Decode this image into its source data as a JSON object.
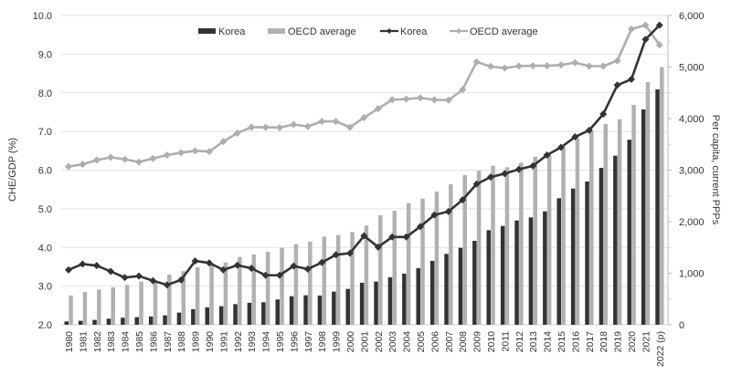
{
  "chart_data": {
    "type": "bar+line",
    "title": "",
    "categories": [
      "1980",
      "1981",
      "1982",
      "1983",
      "1984",
      "1985",
      "1986",
      "1987",
      "1988",
      "1989",
      "1990",
      "1991",
      "1992",
      "1993",
      "1994",
      "1995",
      "1996",
      "1997",
      "1998",
      "1999",
      "2000",
      "2001",
      "2002",
      "2003",
      "2004",
      "2005",
      "2006",
      "2007",
      "2008",
      "2009",
      "2010",
      "2011",
      "2012",
      "2013",
      "2014",
      "2015",
      "2016",
      "2017",
      "2018",
      "2019",
      "2020",
      "2021",
      "2022 (p)"
    ],
    "left_axis": {
      "label": "CHE/GDP (%)",
      "range": [
        2.0,
        10.0
      ],
      "ticks": [
        "2.0",
        "3.0",
        "4.0",
        "5.0",
        "6.0",
        "7.0",
        "8.0",
        "9.0",
        "10.0"
      ],
      "tick_values": [
        2,
        3,
        4,
        5,
        6,
        7,
        8,
        9,
        10
      ]
    },
    "right_axis": {
      "label": "Per capita, current PPPs",
      "range": [
        0,
        6000
      ],
      "ticks": [
        "0",
        "1,000",
        "2,000",
        "3,000",
        "4,000",
        "5,000",
        "6,000"
      ],
      "tick_values": [
        0,
        1000,
        2000,
        3000,
        4000,
        5000,
        6000
      ]
    },
    "grid": true,
    "legend_position": "top-center",
    "series": [
      {
        "name": "Korea",
        "kind": "bar",
        "axis": "right",
        "color": "#333333",
        "values": [
          65,
          77,
          94,
          118,
          136,
          147,
          159,
          183,
          236,
          301,
          336,
          360,
          401,
          425,
          437,
          490,
          554,
          572,
          566,
          643,
          696,
          814,
          837,
          920,
          991,
          1097,
          1239,
          1375,
          1492,
          1628,
          1835,
          1917,
          2023,
          2083,
          2200,
          2455,
          2643,
          2779,
          3044,
          3280,
          3590,
          4177,
          4566
        ]
      },
      {
        "name": "OECD average",
        "kind": "bar",
        "axis": "right",
        "color": "#b3b0b0",
        "values": [
          566,
          637,
          684,
          726,
          773,
          837,
          844,
          973,
          1039,
          1115,
          1168,
          1209,
          1315,
          1363,
          1416,
          1492,
          1563,
          1611,
          1711,
          1740,
          1800,
          1924,
          2124,
          2212,
          2359,
          2448,
          2584,
          2726,
          2903,
          2986,
          3085,
          3056,
          3142,
          3262,
          3292,
          3440,
          3616,
          3764,
          3894,
          3988,
          4265,
          4708,
          5000
        ]
      },
      {
        "name": "Korea",
        "kind": "line",
        "axis": "left",
        "color": "#333333",
        "values": [
          3.42,
          3.57,
          3.53,
          3.38,
          3.22,
          3.26,
          3.14,
          3.03,
          3.16,
          3.65,
          3.6,
          3.42,
          3.54,
          3.46,
          3.28,
          3.28,
          3.52,
          3.44,
          3.61,
          3.81,
          3.85,
          4.3,
          4.01,
          4.27,
          4.27,
          4.54,
          4.84,
          4.93,
          5.23,
          5.64,
          5.82,
          5.91,
          6.02,
          6.11,
          6.39,
          6.59,
          6.86,
          7.03,
          7.45,
          8.2,
          8.35,
          9.38,
          9.75
        ]
      },
      {
        "name": "OECD average",
        "kind": "line",
        "axis": "left",
        "color": "#b0adad",
        "values": [
          6.09,
          6.15,
          6.26,
          6.33,
          6.28,
          6.21,
          6.3,
          6.39,
          6.45,
          6.5,
          6.48,
          6.74,
          6.96,
          7.11,
          7.11,
          7.1,
          7.18,
          7.13,
          7.26,
          7.26,
          7.11,
          7.36,
          7.59,
          7.82,
          7.84,
          7.87,
          7.82,
          7.81,
          8.08,
          8.8,
          8.68,
          8.64,
          8.69,
          8.7,
          8.7,
          8.72,
          8.78,
          8.69,
          8.69,
          8.83,
          9.65,
          9.75,
          9.24
        ]
      }
    ],
    "legend": [
      {
        "label": "Korea",
        "kind": "bar",
        "color": "#333333"
      },
      {
        "label": "OECD average",
        "kind": "bar",
        "color": "#b3b0b0"
      },
      {
        "label": "Korea",
        "kind": "line",
        "color": "#333333"
      },
      {
        "label": "OECD average",
        "kind": "line",
        "color": "#b0adad"
      }
    ]
  }
}
